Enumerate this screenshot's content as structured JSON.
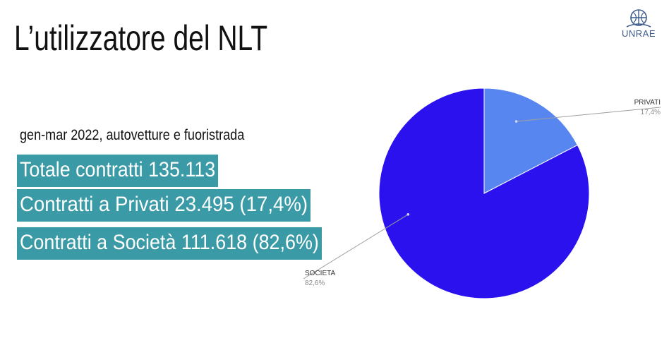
{
  "slide": {
    "title": "L’utilizzatore del NLT",
    "logo_text": "UNRAE",
    "subtitle": "gen-mar 2022, autovetture e fuoristrada",
    "highlights": [
      "Totale contratti 135.113",
      "Contratti a Privati  23.495 (17,4%)",
      "Contratti a Società 111.618 (82,6%)"
    ]
  },
  "colors": {
    "privati": "#5786f0",
    "societa": "#2a11ee",
    "highlight_bg": "#3a9aa6",
    "leader": "#9e9e9e"
  },
  "chart_data": {
    "type": "pie",
    "categories": [
      "PRIVATI",
      "SOCIETA"
    ],
    "values": [
      17.4,
      82.6
    ],
    "value_labels": [
      "17,4%",
      "82,6%"
    ],
    "start": "top",
    "direction": "clockwise"
  }
}
